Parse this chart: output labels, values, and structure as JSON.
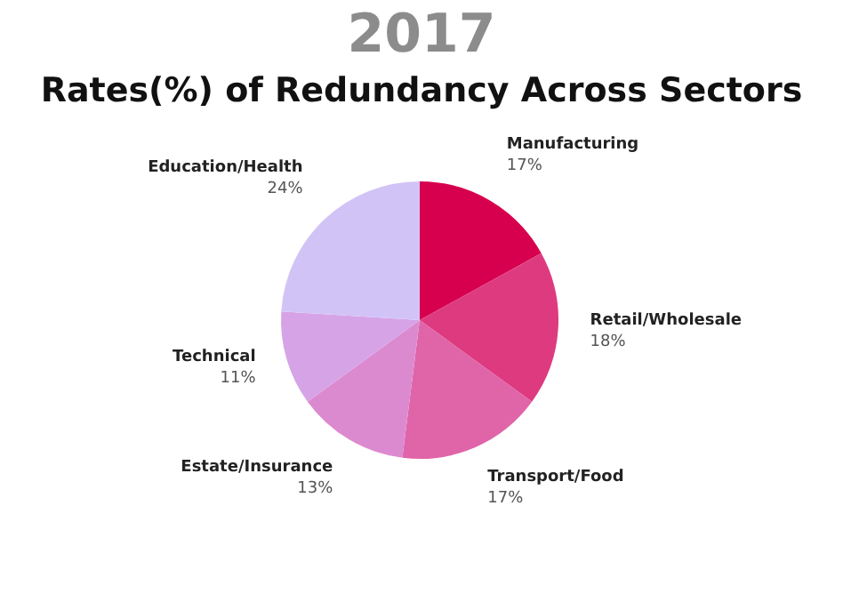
{
  "chart_data": {
    "type": "pie",
    "title": "2017",
    "subtitle": "Rates(%) of Redundancy Across Sectors",
    "categories": [
      "Manufacturing",
      "Retail/Wholesale",
      "Transport/Food",
      "Estate/Insurance",
      "Technical",
      "Education/Health"
    ],
    "values": [
      17,
      18,
      17,
      13,
      11,
      24
    ],
    "value_labels": [
      "17%",
      "18%",
      "17%",
      "13%",
      "11%",
      "24%"
    ],
    "colors": [
      "#d6004f",
      "#de3a80",
      "#e064a8",
      "#dc8ad0",
      "#d6a4e6",
      "#d2c3f7"
    ],
    "legend": false
  }
}
